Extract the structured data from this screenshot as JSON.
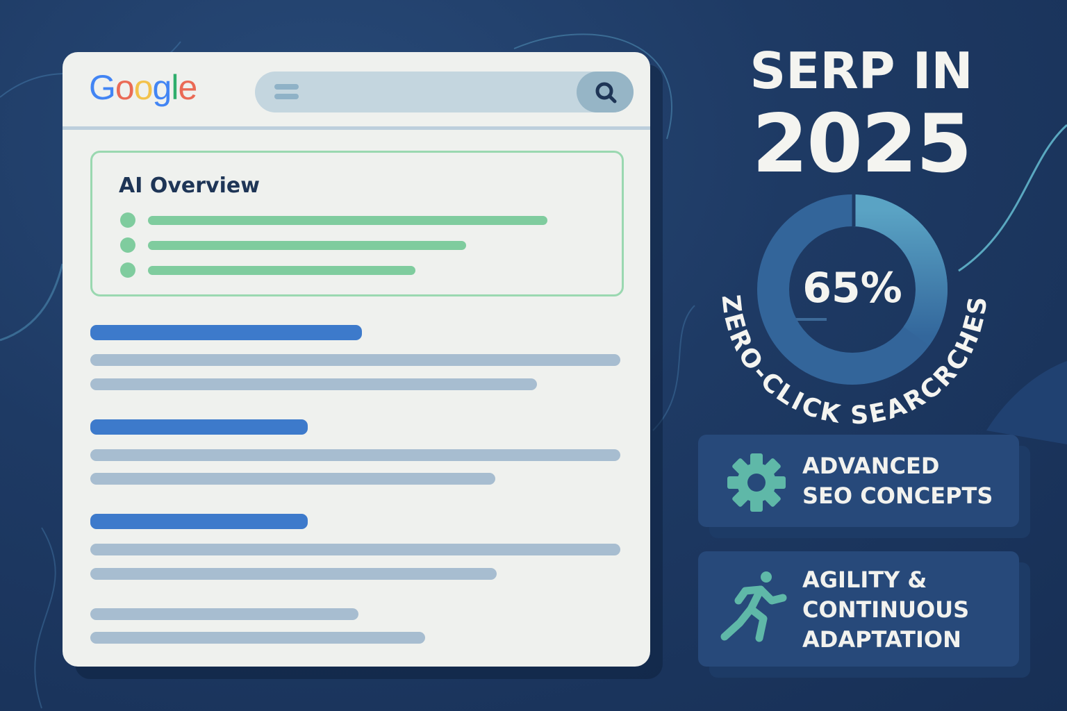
{
  "search_page": {
    "logo": "Google",
    "ai_overview": {
      "title": "AI Overview"
    }
  },
  "headline": {
    "line1": "SERP IN",
    "line2": "2025"
  },
  "stat": {
    "value": "65%",
    "caption": "ZERO-CLICK SEARCRCHES",
    "fraction": 0.65
  },
  "features": [
    {
      "icon": "gear-icon",
      "lines": [
        "ADVANCED",
        "SEO CONCEPTS"
      ]
    },
    {
      "icon": "running-person-icon",
      "lines": [
        "AGILITY &",
        "CONTINUOUS",
        "ADAPTATION"
      ]
    }
  ],
  "colors": {
    "background": "#1e3a64",
    "ai_green": "#7fcc9e",
    "link_blue": "#3d7acb",
    "accent_teal": "#5fb8a8"
  }
}
